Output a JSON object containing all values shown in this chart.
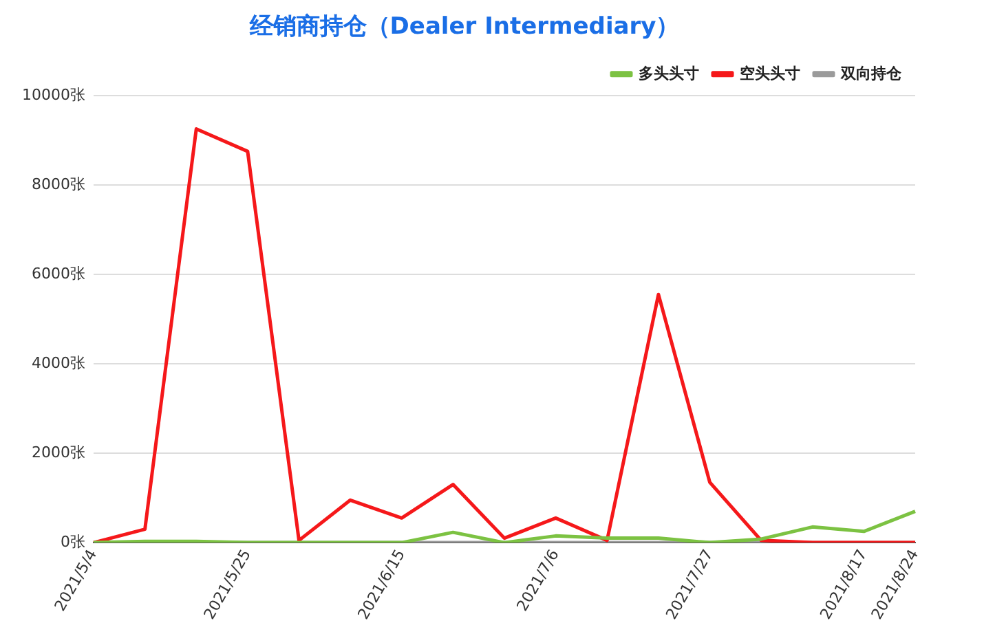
{
  "chart_data": {
    "type": "line",
    "title": "经销商持仓（Dealer Intermediary）",
    "categories": [
      "2021/5/4",
      null,
      null,
      "2021/5/25",
      null,
      null,
      "2021/6/15",
      null,
      null,
      "2021/7/6",
      null,
      null,
      "2021/7/27",
      null,
      null,
      "2021/8/17",
      "2021/8/24"
    ],
    "series": [
      {
        "name": "多头头寸",
        "color": "#7cc242",
        "values": [
          0,
          30,
          30,
          0,
          0,
          0,
          0,
          230,
          0,
          150,
          100,
          100,
          0,
          80,
          350,
          250,
          700
        ]
      },
      {
        "name": "空头头寸",
        "color": "#f5181a",
        "values": [
          0,
          300,
          9250,
          8750,
          50,
          950,
          550,
          1300,
          100,
          550,
          50,
          5550,
          1350,
          50,
          0,
          0,
          0
        ]
      },
      {
        "name": "双向持仓",
        "color": "#9b9b9b",
        "values": [
          0,
          0,
          0,
          0,
          0,
          0,
          0,
          0,
          0,
          0,
          0,
          0,
          0,
          0,
          0,
          0,
          0
        ]
      }
    ],
    "ylim": [
      0,
      10000
    ],
    "yticks": [
      {
        "value": 0,
        "label": "0张"
      },
      {
        "value": 2000,
        "label": "2000张"
      },
      {
        "value": 4000,
        "label": "4000张"
      },
      {
        "value": 6000,
        "label": "6000张"
      },
      {
        "value": 8000,
        "label": "8000张"
      },
      {
        "value": 10000,
        "label": "10000张"
      }
    ],
    "grid": "y",
    "legend": "top right",
    "marker": "none",
    "line_style": "solid"
  }
}
